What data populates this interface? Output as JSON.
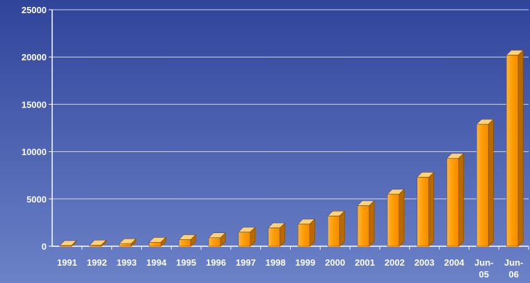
{
  "chart_data": {
    "type": "bar",
    "categories": [
      "1991",
      "1992",
      "1993",
      "1994",
      "1995",
      "1996",
      "1997",
      "1998",
      "1999",
      "2000",
      "2001",
      "2002",
      "2003",
      "2004",
      "Jun-05",
      "Jun-06"
    ],
    "category_labels": [
      [
        "1991"
      ],
      [
        "1992"
      ],
      [
        "1993"
      ],
      [
        "1994"
      ],
      [
        "1995"
      ],
      [
        "1996"
      ],
      [
        "1997"
      ],
      [
        "1998"
      ],
      [
        "1999"
      ],
      [
        "2000"
      ],
      [
        "2001"
      ],
      [
        "2002"
      ],
      [
        "2003"
      ],
      [
        "2004"
      ],
      [
        "Jun-",
        "05"
      ],
      [
        "Jun-",
        "06"
      ]
    ],
    "values": [
      80,
      120,
      280,
      420,
      700,
      900,
      1500,
      1950,
      2350,
      3200,
      4300,
      5500,
      7300,
      9300,
      12900,
      20200
    ],
    "yticks": [
      "0",
      "5000",
      "10000",
      "15000",
      "20000",
      "25000"
    ],
    "ylim": [
      0,
      25000
    ],
    "title": "",
    "xlabel": "",
    "ylabel": "",
    "grid": true,
    "legend": "none",
    "colors": {
      "bar_front": "#ff9c00",
      "bar_top": "#ffd27a",
      "bar_side": "#b86a00",
      "grid": "#dfe6ff",
      "background_top": "#30449a",
      "background_bottom": "#6b82c8"
    }
  }
}
